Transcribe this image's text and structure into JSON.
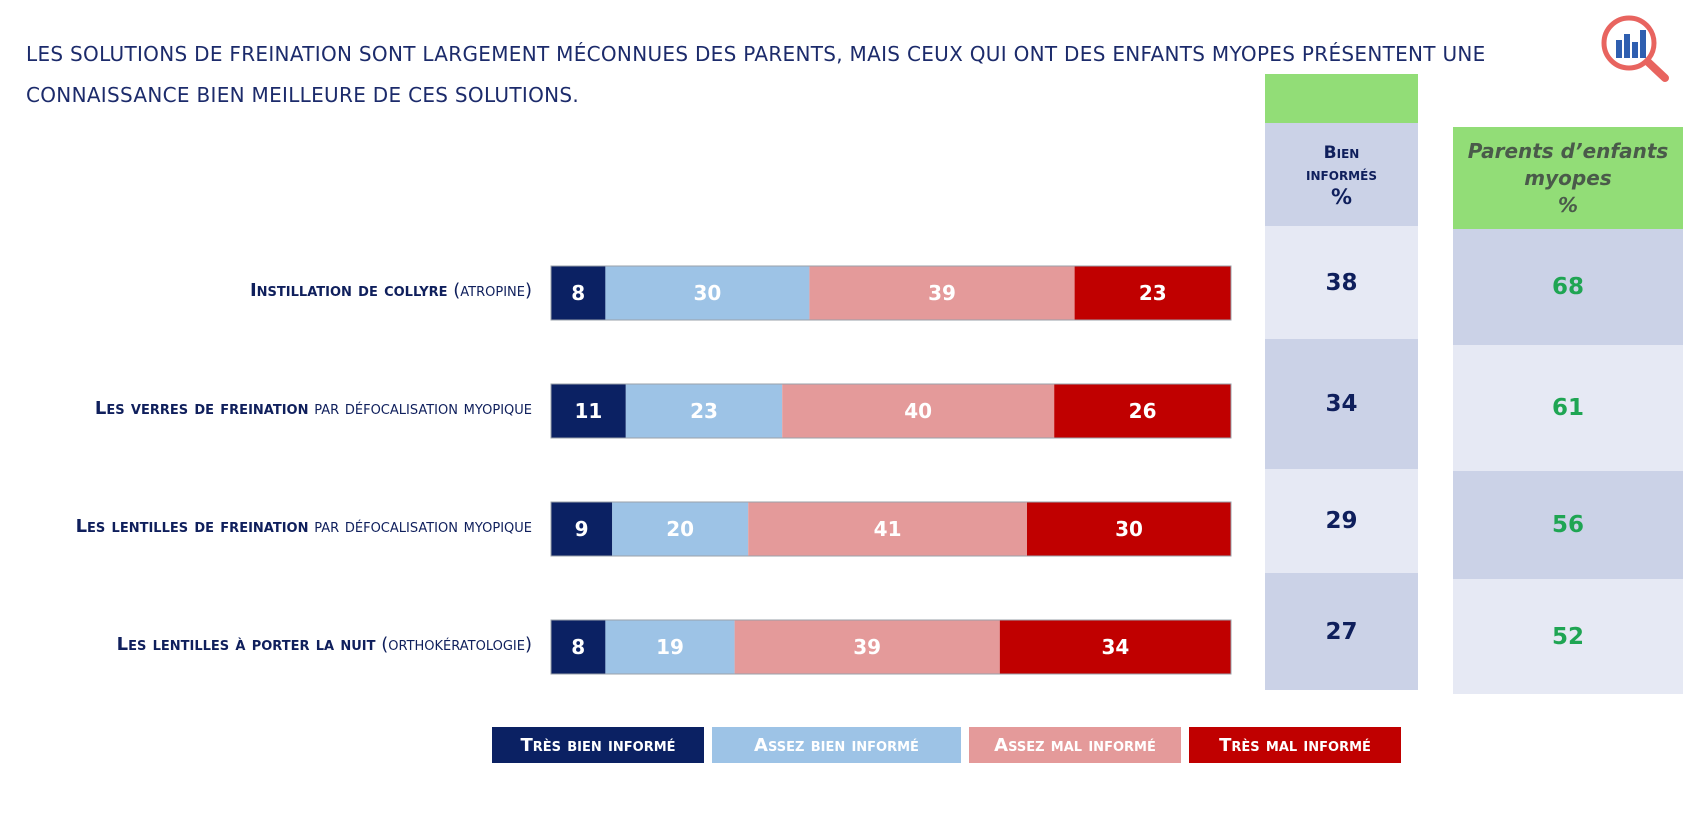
{
  "title": "Les solutions de freination sont largement méconnues des parents, mais ceux qui ont des enfants myopes présentent une connaissance bien meilleure de ces solutions.",
  "logo_icon": "magnifier-bar-chart-icon",
  "colors": {
    "tres_bien": "#0b2163",
    "assez_bien": "#9dc3e6",
    "assez_mal": "#e49a9a",
    "tres_mal": "#c00000",
    "table_dark": "#cbd2e7",
    "table_light": "#e6e9f4",
    "green": "#92dd77",
    "green_text": "#1fa553"
  },
  "rows": [
    {
      "label_bold": "Instillation de collyre",
      "label_rest": " (atropine)"
    },
    {
      "label_bold": "Les verres de freination",
      "label_rest": " par défocalisation myopique"
    },
    {
      "label_bold": "Les lentilles de freination",
      "label_rest": " par défocalisation myopique"
    },
    {
      "label_bold": "Les lentilles à porter la nuit",
      "label_rest": " (orthokératologie)"
    }
  ],
  "bien_informes": {
    "header_line1": "Bien",
    "header_line2": "informés",
    "header_unit": "%",
    "values": [
      "38",
      "34",
      "29",
      "27"
    ]
  },
  "parents_myopes": {
    "header_line1": "Parents d’enfants",
    "header_line2": "myopes",
    "header_unit": "%",
    "values": [
      "68",
      "61",
      "56",
      "52"
    ]
  },
  "chart_data": {
    "type": "bar",
    "orientation": "horizontal",
    "stacked": true,
    "categories": [
      "Instillation de collyre (atropine)",
      "Les verres de freination par défocalisation myopique",
      "Les lentilles de freination par défocalisation myopique",
      "Les lentilles à porter la nuit (orthokératologie)"
    ],
    "series": [
      {
        "name": "Très bien informé",
        "values": [
          8,
          11,
          9,
          8
        ]
      },
      {
        "name": "Assez bien informé",
        "values": [
          30,
          23,
          20,
          19
        ]
      },
      {
        "name": "Assez mal informé",
        "values": [
          39,
          40,
          41,
          39
        ]
      },
      {
        "name": "Très mal informé",
        "values": [
          23,
          26,
          30,
          34
        ]
      }
    ],
    "xlim": [
      0,
      100
    ],
    "legend_position": "bottom",
    "grid": false
  }
}
